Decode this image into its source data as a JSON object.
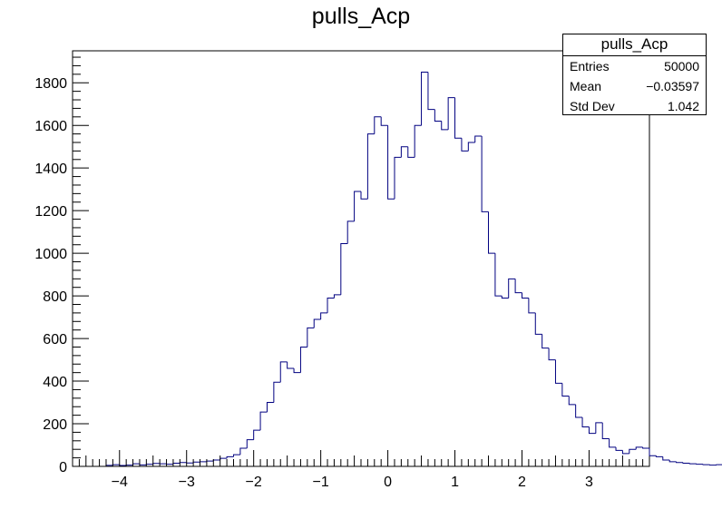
{
  "chart_data": {
    "type": "bar",
    "title": "pulls_Acp",
    "xlabel": "",
    "ylabel": "",
    "xlim": [
      -4.7,
      3.9
    ],
    "ylim": [
      0,
      1950
    ],
    "bin_width": 0.1,
    "bin_start": -4.2,
    "x_ticks": [
      -4,
      -3,
      -2,
      -1,
      0,
      1,
      2,
      3
    ],
    "x_tick_labels": [
      "−4",
      "−3",
      "−2",
      "−1",
      "0",
      "1",
      "2",
      "3"
    ],
    "y_ticks": [
      0,
      200,
      400,
      600,
      800,
      1000,
      1200,
      1400,
      1600,
      1800
    ],
    "y_tick_labels": [
      "0",
      "200",
      "400",
      "600",
      "800",
      "1000",
      "1200",
      "1400",
      "1600",
      "1800"
    ],
    "grid": false,
    "line_color": "#000080",
    "values": [
      5,
      8,
      4,
      6,
      12,
      7,
      10,
      14,
      12,
      10,
      15,
      18,
      16,
      20,
      22,
      25,
      30,
      38,
      45,
      55,
      85,
      125,
      170,
      255,
      300,
      395,
      490,
      460,
      440,
      560,
      650,
      690,
      720,
      790,
      805,
      1045,
      1150,
      1290,
      1255,
      1560,
      1640,
      1600,
      1255,
      1450,
      1500,
      1450,
      1600,
      1850,
      1675,
      1620,
      1580,
      1730,
      1540,
      1480,
      1520,
      1550,
      1195,
      1000,
      800,
      790,
      880,
      815,
      790,
      720,
      620,
      555,
      500,
      390,
      330,
      290,
      230,
      185,
      155,
      205,
      130,
      90,
      75,
      60,
      80,
      90,
      85,
      50,
      45,
      30,
      22,
      18,
      15,
      12,
      10,
      8,
      6,
      8,
      5
    ],
    "stats": {
      "title": "pulls_Acp",
      "rows": [
        {
          "label": "Entries",
          "value": "50000"
        },
        {
          "label": "Mean",
          "value": "−0.03597"
        },
        {
          "label": "Std Dev",
          "value": "1.042"
        }
      ]
    }
  }
}
